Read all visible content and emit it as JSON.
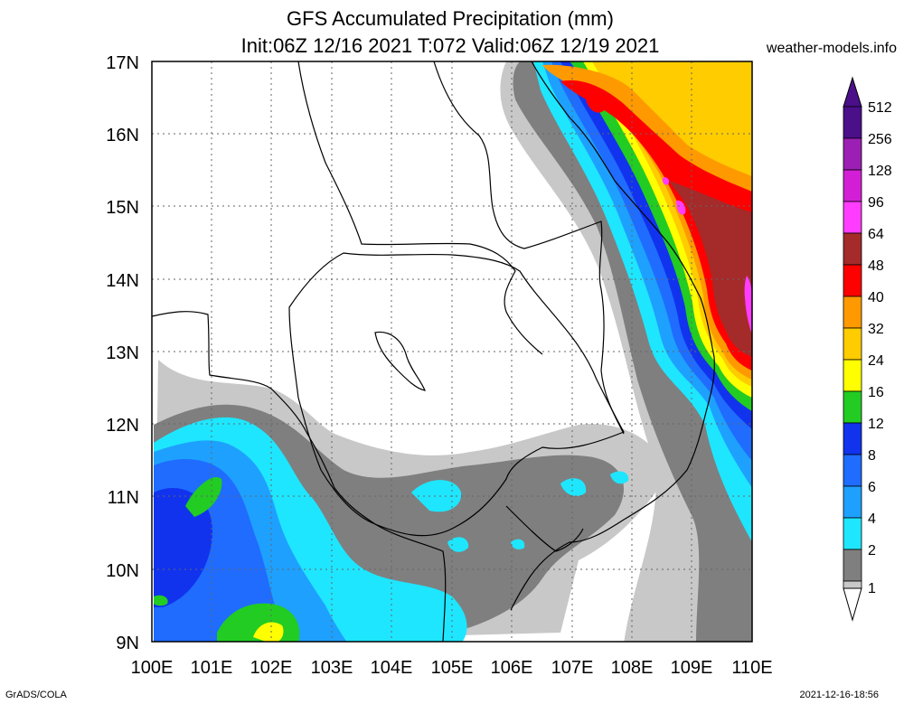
{
  "title": {
    "line1": "GFS Accumulated Precipitation (mm)",
    "line2": "Init:06Z 12/16 2021 T:072 Valid:06Z 12/19 2021"
  },
  "site": "weather-models.info",
  "footer": {
    "left": "GrADS/COLA",
    "right": "2021-12-16-18:56"
  },
  "axes": {
    "lat_labels": [
      "17N",
      "16N",
      "15N",
      "14N",
      "13N",
      "12N",
      "11N",
      "10N",
      "9N"
    ],
    "lon_labels": [
      "100E",
      "101E",
      "102E",
      "103E",
      "104E",
      "105E",
      "106E",
      "107E",
      "108E",
      "109E",
      "110E"
    ]
  },
  "legend": {
    "levels": [
      "512",
      "256",
      "128",
      "96",
      "64",
      "48",
      "40",
      "32",
      "24",
      "16",
      "12",
      "8",
      "6",
      "4",
      "2",
      "1"
    ],
    "colors": {
      "c512": "#4b0f8a",
      "c256": "#9b1fb5",
      "c128": "#d21fd6",
      "c96": "#ff3cff",
      "c64": "#a52a2a",
      "c48": "#ff0000",
      "c40": "#ff9900",
      "c32": "#ffcc00",
      "c24": "#ffff00",
      "c16": "#22cc22",
      "c12": "#1133ee",
      "c8": "#1f6cff",
      "c6": "#1ea0ff",
      "c4": "#1ee6ff",
      "c2": "#7f7f7f",
      "c1": "#c8c8c8"
    }
  }
}
